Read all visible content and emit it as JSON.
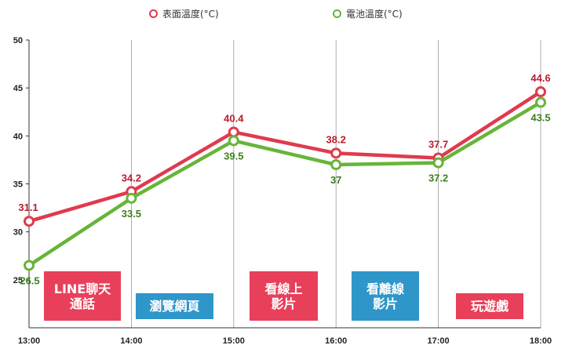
{
  "chart_data": {
    "type": "line",
    "title": "",
    "xlabel": "",
    "ylabel": "",
    "categories": [
      "13:00",
      "14:00",
      "15:00",
      "16:00",
      "17:00",
      "18:00"
    ],
    "ylim": [
      20,
      50
    ],
    "yticks": [
      25,
      30,
      35,
      40,
      45,
      50
    ],
    "grid": "vertical",
    "legend_position": "top",
    "series": [
      {
        "name": "表面溫度(°C)",
        "color": "#e03a4e",
        "values": [
          31.1,
          34.2,
          40.4,
          38.2,
          37.7,
          44.6
        ],
        "labels": [
          "31.1",
          "34.2",
          "40.4",
          "38.2",
          "37.7",
          "44.6"
        ],
        "label_color": "#b81c2c"
      },
      {
        "name": "電池溫度(°C)",
        "color": "#67b538",
        "values": [
          26.5,
          33.5,
          39.5,
          37,
          37.2,
          43.5
        ],
        "labels": [
          "26.5",
          "33.5",
          "39.5",
          "37",
          "37.2",
          "43.5"
        ],
        "label_color": "#3f7f1e"
      }
    ],
    "annotations": [
      {
        "text": "LINE聊天\n通話",
        "color": "#e8405a"
      },
      {
        "text": "瀏覽網頁",
        "color": "#2f96c9"
      },
      {
        "text": "看線上\n影片",
        "color": "#e8405a"
      },
      {
        "text": "看離線\n影片",
        "color": "#2f96c9"
      },
      {
        "text": "玩遊戲",
        "color": "#e8405a"
      }
    ]
  }
}
